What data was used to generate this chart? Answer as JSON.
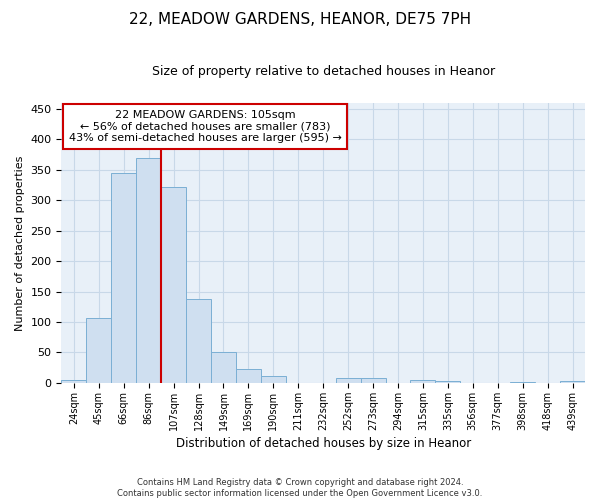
{
  "title_line1": "22, MEADOW GARDENS, HEANOR, DE75 7PH",
  "title_line2": "Size of property relative to detached houses in Heanor",
  "xlabel": "Distribution of detached houses by size in Heanor",
  "ylabel": "Number of detached properties",
  "categories": [
    "24sqm",
    "45sqm",
    "66sqm",
    "86sqm",
    "107sqm",
    "128sqm",
    "149sqm",
    "169sqm",
    "190sqm",
    "211sqm",
    "232sqm",
    "252sqm",
    "273sqm",
    "294sqm",
    "315sqm",
    "335sqm",
    "356sqm",
    "377sqm",
    "398sqm",
    "418sqm",
    "439sqm"
  ],
  "values": [
    5,
    107,
    344,
    370,
    322,
    137,
    51,
    23,
    11,
    0,
    0,
    8,
    8,
    0,
    4,
    3,
    0,
    0,
    2,
    0,
    3
  ],
  "bar_color": "#cfdff0",
  "bar_edge_color": "#7bafd4",
  "grid_color": "#c8d8e8",
  "background_color": "#e8f0f8",
  "property_label": "22 MEADOW GARDENS: 105sqm",
  "annotation_line1": "← 56% of detached houses are smaller (783)",
  "annotation_line2": "43% of semi-detached houses are larger (595) →",
  "vline_index": 4,
  "vline_color": "#cc0000",
  "annotation_box_facecolor": "#ffffff",
  "annotation_box_edgecolor": "#cc0000",
  "ylim": [
    0,
    460
  ],
  "yticks": [
    0,
    50,
    100,
    150,
    200,
    250,
    300,
    350,
    400,
    450
  ],
  "footer_line1": "Contains HM Land Registry data © Crown copyright and database right 2024.",
  "footer_line2": "Contains public sector information licensed under the Open Government Licence v3.0."
}
